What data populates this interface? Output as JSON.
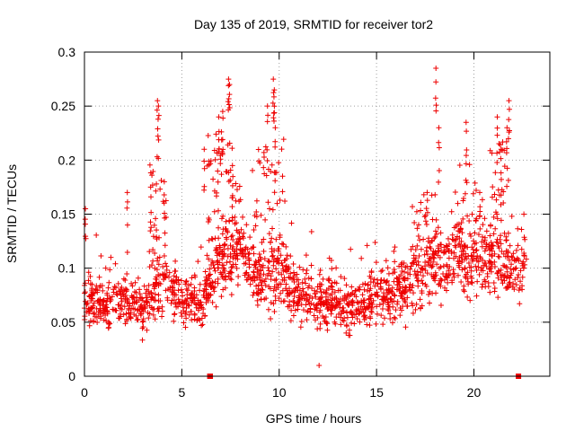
{
  "chart_data": {
    "type": "scatter",
    "title": "Day 135 of 2019, SRMTID for receiver tor2",
    "xlabel": "GPS time / hours",
    "ylabel": "SRMTID / TECUs",
    "xlim": [
      0,
      23.9
    ],
    "ylim": [
      0,
      0.3
    ],
    "xticks": [
      "0",
      "5",
      "10",
      "15",
      "20"
    ],
    "xtick_values": [
      0,
      5,
      10,
      15,
      20
    ],
    "yticks": [
      "0",
      "0.05",
      "0.1",
      "0.15",
      "0.2",
      "0.25",
      "0.3"
    ],
    "ytick_values": [
      0,
      0.05,
      0.1,
      0.15,
      0.2,
      0.25,
      0.3
    ],
    "grid": true,
    "marker": "+",
    "color": "#ee0000",
    "series_name": "SRMTID",
    "envelope": {
      "description": "Approximate baseline trend of the dense point cloud (hours, TECU)",
      "x": [
        0,
        1,
        2,
        3,
        4,
        5,
        6,
        7,
        8,
        9,
        10,
        11,
        12,
        13,
        14,
        15,
        16,
        17,
        18,
        19,
        20,
        21,
        22,
        22.7
      ],
      "y": [
        0.07,
        0.065,
        0.07,
        0.06,
        0.085,
        0.07,
        0.065,
        0.11,
        0.11,
        0.09,
        0.1,
        0.075,
        0.07,
        0.065,
        0.065,
        0.075,
        0.08,
        0.09,
        0.1,
        0.105,
        0.11,
        0.11,
        0.095,
        0.1
      ],
      "spread": [
        0.02,
        0.018,
        0.02,
        0.02,
        0.03,
        0.022,
        0.02,
        0.035,
        0.03,
        0.03,
        0.03,
        0.022,
        0.022,
        0.02,
        0.02,
        0.025,
        0.025,
        0.028,
        0.03,
        0.03,
        0.03,
        0.03,
        0.025,
        0.025
      ]
    },
    "peaks": [
      {
        "x": 0.05,
        "y": 0.155
      },
      {
        "x": 2.2,
        "y": 0.17
      },
      {
        "x": 3.4,
        "y": 0.175
      },
      {
        "x": 3.75,
        "y": 0.255
      },
      {
        "x": 3.8,
        "y": 0.25
      },
      {
        "x": 4.1,
        "y": 0.18
      },
      {
        "x": 6.15,
        "y": 0.21
      },
      {
        "x": 6.9,
        "y": 0.24
      },
      {
        "x": 7.1,
        "y": 0.245
      },
      {
        "x": 7.4,
        "y": 0.275
      },
      {
        "x": 7.45,
        "y": 0.27
      },
      {
        "x": 7.6,
        "y": 0.195
      },
      {
        "x": 9.4,
        "y": 0.25
      },
      {
        "x": 9.7,
        "y": 0.275
      },
      {
        "x": 9.75,
        "y": 0.265
      },
      {
        "x": 9.8,
        "y": 0.23
      },
      {
        "x": 12.05,
        "y": 0.01
      },
      {
        "x": 17.6,
        "y": 0.17
      },
      {
        "x": 18.05,
        "y": 0.285
      },
      {
        "x": 18.2,
        "y": 0.23
      },
      {
        "x": 19.6,
        "y": 0.235
      },
      {
        "x": 20.3,
        "y": 0.17
      },
      {
        "x": 21.2,
        "y": 0.24
      },
      {
        "x": 21.8,
        "y": 0.255
      },
      {
        "x": 21.7,
        "y": 0.23
      },
      {
        "x": 21.4,
        "y": 0.21
      }
    ],
    "bursts": [
      {
        "x0": 3.3,
        "x1": 4.2,
        "ymin": 0.08,
        "ymax": 0.2,
        "count": 30
      },
      {
        "x0": 6.3,
        "x1": 7.6,
        "ymin": 0.12,
        "ymax": 0.23,
        "count": 50
      },
      {
        "x0": 7.6,
        "x1": 8.2,
        "ymin": 0.1,
        "ymax": 0.18,
        "count": 25
      },
      {
        "x0": 8.6,
        "x1": 10.3,
        "ymin": 0.1,
        "ymax": 0.22,
        "count": 45
      },
      {
        "x0": 16.9,
        "x1": 18.3,
        "ymin": 0.1,
        "ymax": 0.17,
        "count": 30
      },
      {
        "x0": 19.0,
        "x1": 20.2,
        "ymin": 0.11,
        "ymax": 0.2,
        "count": 30
      },
      {
        "x0": 20.8,
        "x1": 21.8,
        "ymin": 0.12,
        "ymax": 0.22,
        "count": 35
      }
    ],
    "axis_markers": [
      {
        "x0": 6.3,
        "x1": 6.6,
        "y": 0
      },
      {
        "x0": 22.15,
        "x1": 22.25,
        "y": 0
      }
    ]
  }
}
